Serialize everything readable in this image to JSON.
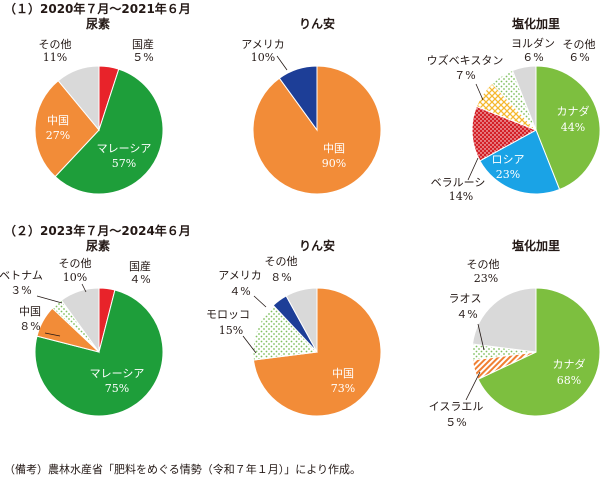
{
  "sections": [
    {
      "title": "（１）2020年７月～2021年６月"
    },
    {
      "title": "（２）2023年７月～2024年６月"
    }
  ],
  "note": "（備考）農林水産省「肥料をめぐる情勢（令和７年１月）」により作成。",
  "colors": {
    "china": "#F28C38",
    "malaysia": "#1E9E3A",
    "other": "#D9D9D9",
    "domestic": "#E8232A",
    "usa": "#1D3E97",
    "canada": "#7DBF3F",
    "russia": "#1AA3E6",
    "belarus": "#D41F26",
    "uzbek": "#F7C23C",
    "jordan": "#A9D99A",
    "morocco": "#A9D99A",
    "vietnam": "#A9D99A",
    "laos": "#A9D99A",
    "israel": "#F07F32"
  },
  "chart_data": [
    {
      "type": "pie",
      "title": "尿素",
      "section": 0,
      "slices": [
        {
          "label": "国産",
          "value": 5,
          "value_label": "５%",
          "color_key": "domestic"
        },
        {
          "label": "マレーシア",
          "value": 57,
          "value_label": "57%",
          "color_key": "malaysia"
        },
        {
          "label": "中国",
          "value": 27,
          "value_label": "27%",
          "color_key": "china"
        },
        {
          "label": "その他",
          "value": 11,
          "value_label": "11%",
          "color_key": "other"
        }
      ]
    },
    {
      "type": "pie",
      "title": "りん安",
      "section": 0,
      "slices": [
        {
          "label": "中国",
          "value": 90,
          "value_label": "90%",
          "color_key": "china"
        },
        {
          "label": "アメリカ",
          "value": 10,
          "value_label": "10%",
          "color_key": "usa"
        }
      ]
    },
    {
      "type": "pie",
      "title": "塩化加里",
      "section": 0,
      "slices": [
        {
          "label": "カナダ",
          "value": 44,
          "value_label": "44%",
          "color_key": "canada"
        },
        {
          "label": "ロシア",
          "value": 23,
          "value_label": "23%",
          "color_key": "russia"
        },
        {
          "label": "ベラルーシ",
          "value": 14,
          "value_label": "14%",
          "color_key": "belarus"
        },
        {
          "label": "ウズベキスタン",
          "value": 7,
          "value_label": "７%",
          "color_key": "uzbek"
        },
        {
          "label": "ヨルダン",
          "value": 6,
          "value_label": "６%",
          "color_key": "jordan"
        },
        {
          "label": "その他",
          "value": 6,
          "value_label": "６%",
          "color_key": "other"
        }
      ]
    },
    {
      "type": "pie",
      "title": "尿素",
      "section": 1,
      "slices": [
        {
          "label": "国産",
          "value": 4,
          "value_label": "４%",
          "color_key": "domestic"
        },
        {
          "label": "マレーシア",
          "value": 75,
          "value_label": "75%",
          "color_key": "malaysia"
        },
        {
          "label": "中国",
          "value": 8,
          "value_label": "８%",
          "color_key": "china"
        },
        {
          "label": "ベトナム",
          "value": 3,
          "value_label": "３%",
          "color_key": "vietnam"
        },
        {
          "label": "その他",
          "value": 10,
          "value_label": "10%",
          "color_key": "other"
        }
      ]
    },
    {
      "type": "pie",
      "title": "りん安",
      "section": 1,
      "slices": [
        {
          "label": "中国",
          "value": 73,
          "value_label": "73%",
          "color_key": "china"
        },
        {
          "label": "モロッコ",
          "value": 15,
          "value_label": "15%",
          "color_key": "morocco"
        },
        {
          "label": "アメリカ",
          "value": 4,
          "value_label": "４%",
          "color_key": "usa"
        },
        {
          "label": "その他",
          "value": 8,
          "value_label": "８%",
          "color_key": "other"
        }
      ]
    },
    {
      "type": "pie",
      "title": "塩化加里",
      "section": 1,
      "slices": [
        {
          "label": "カナダ",
          "value": 68,
          "value_label": "68%",
          "color_key": "canada"
        },
        {
          "label": "イスラエル",
          "value": 5,
          "value_label": "５%",
          "color_key": "israel"
        },
        {
          "label": "ラオス",
          "value": 4,
          "value_label": "４%",
          "color_key": "laos"
        },
        {
          "label": "その他",
          "value": 23,
          "value_label": "23%",
          "color_key": "other"
        }
      ]
    }
  ]
}
